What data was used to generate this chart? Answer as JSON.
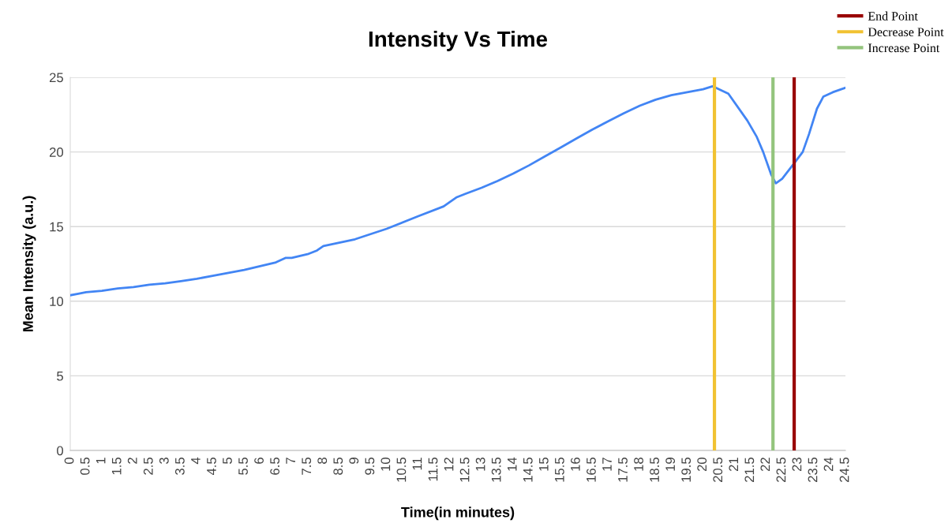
{
  "chart_data": {
    "type": "line",
    "title": "Intensity Vs Time",
    "xlabel": "Time(in minutes)",
    "ylabel": "Mean Intensity (a.u.)",
    "x": [
      0,
      0.25,
      0.5,
      1,
      1.5,
      2,
      2.5,
      3,
      3.5,
      4,
      4.5,
      5,
      5.5,
      6,
      6.5,
      6.8,
      7,
      7.5,
      7.8,
      8,
      9,
      10,
      11,
      11.8,
      12.2,
      12.5,
      13,
      13.5,
      14,
      14.5,
      15,
      15.5,
      16,
      16.5,
      17,
      17.5,
      18,
      18.5,
      19,
      19.5,
      20,
      20.3,
      20.8,
      21.4,
      21.7,
      21.9,
      22.15,
      22.3,
      22.5,
      22.9,
      23.15,
      23.35,
      23.6,
      23.8,
      24.1,
      24.5
    ],
    "series": [
      {
        "color": "#4285f4",
        "values": [
          10.4,
          10.5,
          10.6,
          10.7,
          10.85,
          10.95,
          11.1,
          11.2,
          11.35,
          11.5,
          11.7,
          11.9,
          12.1,
          12.35,
          12.6,
          12.9,
          12.9,
          13.15,
          13.4,
          13.7,
          14.15,
          14.85,
          15.7,
          16.35,
          16.95,
          17.2,
          17.6,
          18.05,
          18.55,
          19.1,
          19.7,
          20.3,
          20.9,
          21.5,
          22.05,
          22.6,
          23.1,
          23.5,
          23.8,
          24.0,
          24.2,
          24.4,
          23.9,
          22.1,
          21.0,
          20.0,
          18.5,
          17.9,
          18.2,
          19.3,
          20.0,
          21.2,
          22.9,
          23.7,
          24.0,
          24.3
        ]
      }
    ],
    "xlim": [
      0,
      24.5
    ],
    "ylim": [
      0,
      25
    ],
    "xticks": [
      0,
      0.5,
      1,
      1.5,
      2,
      2.5,
      3,
      3.5,
      4,
      4.5,
      5,
      5.5,
      6,
      6.5,
      7,
      7.5,
      8,
      8.5,
      9,
      9.5,
      10,
      10.5,
      11,
      11.5,
      12,
      12.5,
      13,
      13.5,
      14,
      14.5,
      15,
      15.5,
      16,
      16.5,
      17,
      17.5,
      18,
      18.5,
      19,
      19.5,
      20,
      20.5,
      21,
      21.5,
      22,
      22.5,
      23,
      23.5,
      24,
      24.5
    ],
    "yticks": [
      0,
      5,
      10,
      15,
      20,
      25
    ],
    "ref_lines": [
      {
        "axis": "x",
        "value": 22.88,
        "label": "End Point",
        "color": "#990000"
      },
      {
        "axis": "x",
        "value": 20.36,
        "label": "Decrease Point",
        "color": "#f1c232"
      },
      {
        "axis": "x",
        "value": 22.21,
        "label": "Increase Point",
        "color": "#93c47d"
      }
    ],
    "grid": "y",
    "legend": "top right"
  }
}
